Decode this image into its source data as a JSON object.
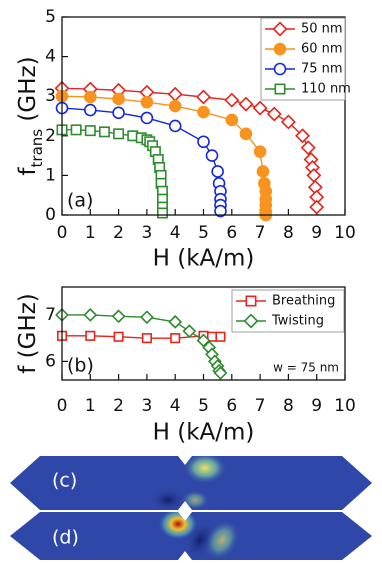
{
  "chart_data": [
    {
      "type": "scatter",
      "ylabel": {
        "main": "f",
        "sub": "trans",
        "rest": " (GHz)"
      },
      "xlabel": "H (kA/m)",
      "panel_label": "(a)",
      "xlim": [
        0,
        10
      ],
      "ylim": [
        0,
        5
      ],
      "xticks": [
        0,
        1,
        2,
        3,
        4,
        5,
        6,
        7,
        8,
        9,
        10
      ],
      "yticks": [
        0,
        1,
        2,
        3,
        4,
        5
      ],
      "legend": "upper right",
      "series": [
        {
          "name": "50 nm",
          "color": "#e8231c",
          "marker": "diamond",
          "filled": false,
          "x": [
            0,
            1,
            2,
            3,
            4,
            5,
            6,
            6.5,
            7,
            7.5,
            8,
            8.5,
            8.7,
            8.8,
            8.85,
            8.9,
            8.95,
            9.0,
            9.0
          ],
          "values": [
            3.2,
            3.18,
            3.15,
            3.1,
            3.05,
            2.98,
            2.9,
            2.8,
            2.7,
            2.55,
            2.35,
            2.0,
            1.7,
            1.4,
            1.2,
            1.0,
            0.7,
            0.45,
            0.2
          ]
        },
        {
          "name": "60 nm",
          "color": "#f7931e",
          "marker": "circle",
          "filled": true,
          "x": [
            0,
            1,
            2,
            3,
            4,
            5,
            6,
            6.5,
            7,
            7.1,
            7.15,
            7.2,
            7.2,
            7.2,
            7.2,
            7.2
          ],
          "values": [
            3.0,
            2.98,
            2.93,
            2.85,
            2.75,
            2.6,
            2.4,
            2.05,
            1.6,
            1.1,
            0.8,
            0.6,
            0.4,
            0.25,
            0.1,
            0
          ]
        },
        {
          "name": "75 nm",
          "color": "#1428e0",
          "marker": "circle",
          "filled": false,
          "x": [
            0,
            1,
            2,
            3,
            4,
            5,
            5.3,
            5.5,
            5.55,
            5.6,
            5.6,
            5.6,
            5.6
          ],
          "values": [
            2.7,
            2.65,
            2.58,
            2.45,
            2.25,
            1.85,
            1.5,
            1.1,
            0.8,
            0.6,
            0.4,
            0.25,
            0.1
          ]
        },
        {
          "name": "110 nm",
          "color": "#2e8b2e",
          "marker": "square",
          "filled": false,
          "x": [
            0,
            0.5,
            1,
            1.5,
            2,
            2.5,
            2.8,
            3,
            3.1,
            3.2,
            3.3,
            3.4,
            3.45,
            3.5,
            3.5,
            3.55,
            3.55,
            3.55,
            3.55
          ],
          "values": [
            2.15,
            2.15,
            2.13,
            2.1,
            2.05,
            2.0,
            1.95,
            1.9,
            1.85,
            1.75,
            1.6,
            1.4,
            1.2,
            1.0,
            0.8,
            0.6,
            0.4,
            0.2,
            0.05
          ]
        }
      ]
    },
    {
      "type": "scatter",
      "ylabel": {
        "main": "f (GHz)"
      },
      "xlabel": "H (kA/m)",
      "panel_label": "(b)",
      "annotation": "w = 75 nm",
      "xlim": [
        0,
        10
      ],
      "ylim": [
        5.6,
        7.6
      ],
      "xticks": [
        0,
        1,
        2,
        3,
        4,
        5,
        6,
        7,
        8,
        9,
        10
      ],
      "yticks": [
        6,
        7
      ],
      "legend": "upper right",
      "series": [
        {
          "name": "Breathing",
          "color": "#e8231c",
          "marker": "square",
          "filled": false,
          "x": [
            0,
            1,
            2,
            3,
            4,
            5,
            5.3,
            5.6
          ],
          "values": [
            6.55,
            6.55,
            6.53,
            6.5,
            6.5,
            6.55,
            6.53,
            6.53
          ]
        },
        {
          "name": "Twisting",
          "color": "#2e8b2e",
          "marker": "diamond",
          "filled": false,
          "x": [
            0,
            1,
            2,
            3,
            4,
            4.5,
            5,
            5.2,
            5.3,
            5.4,
            5.5,
            5.55,
            5.6
          ],
          "values": [
            7.0,
            7.0,
            6.97,
            6.95,
            6.85,
            6.65,
            6.45,
            6.3,
            6.15,
            6.0,
            5.9,
            5.8,
            5.75
          ]
        }
      ]
    }
  ],
  "panels": [
    {
      "label": "(c)"
    },
    {
      "label": "(d)"
    }
  ]
}
